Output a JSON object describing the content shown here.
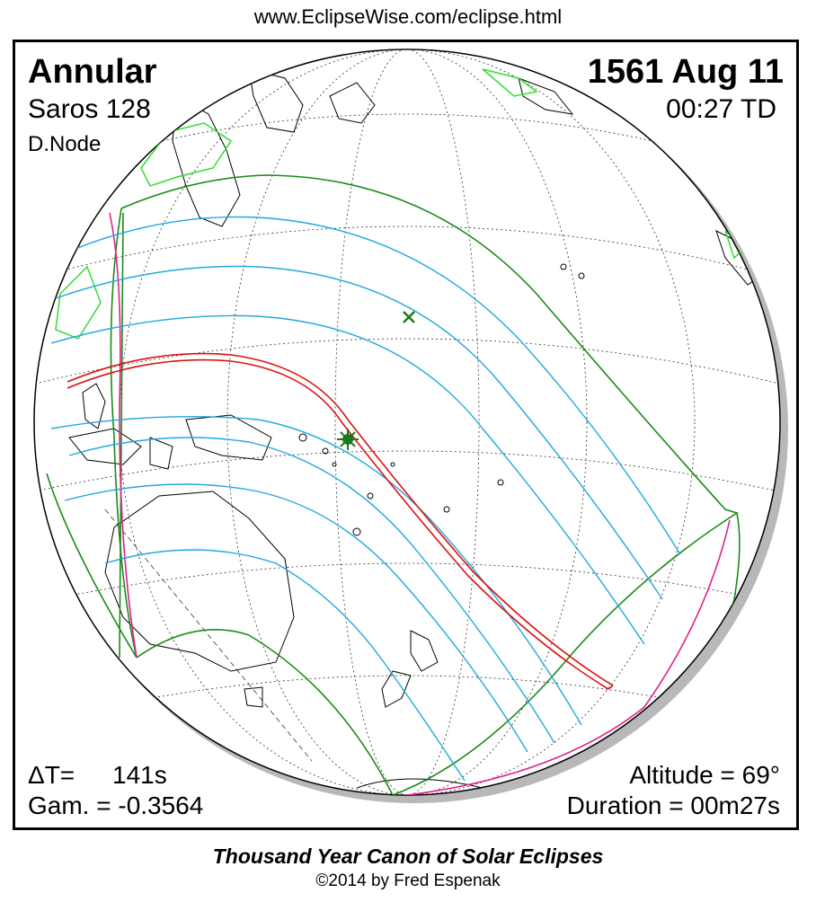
{
  "header": {
    "url": "www.EclipseWise.com/eclipse.html"
  },
  "eclipse": {
    "type": "Annular",
    "date": "1561 Aug 11",
    "saros": "Saros 128",
    "time": "00:27 TD",
    "node": "D.Node",
    "delta_t_label": "ΔT=",
    "delta_t_value": "141s",
    "gamma": "Gam. = -0.3564",
    "altitude": "Altitude = 69°",
    "duration": "Duration = 00m27s"
  },
  "footer": {
    "canon": "Thousand Year Canon of Solar Eclipses",
    "copyright": "©2014 by Fred Espenak"
  },
  "colors": {
    "central_path": "#dd1111",
    "penumbral_limit": "#1a8a1a",
    "magnitude_lines": "#22a8dd",
    "rise_set_curves": "#e0208a",
    "land_outline": "#000000",
    "ice_outline": "#33dd33",
    "globe_shadow": "#b8b8b8"
  },
  "markers": {
    "greatest_eclipse": "green-star-icon",
    "sub_solar_point": "green-cross-icon"
  }
}
